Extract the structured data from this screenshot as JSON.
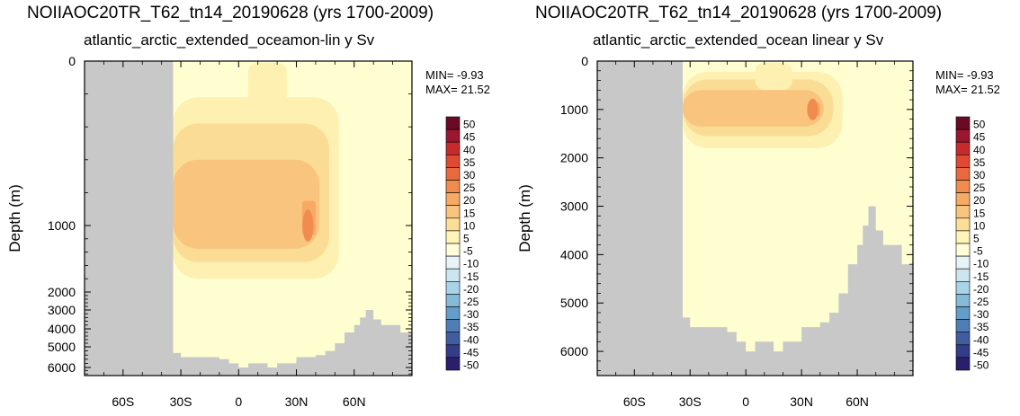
{
  "chart_data": [
    {
      "type": "heatmap",
      "title": "NOIIAOC20TR_T62_tn14_20190628 (yrs 1700-2009)",
      "subtitle": "atlantic_arctic_extended_oceamon-lin y Sv",
      "ylabel": "Depth (m)",
      "y_scale": "mixed: linear 0-1000 m, compressed below 1000 m",
      "y_tick_labels": [
        "0",
        "1000",
        "2000",
        "3000",
        "4000",
        "5000",
        "6000"
      ],
      "y_ticks": [
        0,
        1000,
        2000,
        3000,
        4000,
        5000,
        6000
      ],
      "x_tick_labels": [
        "60S",
        "30S",
        "0",
        "30N",
        "60N"
      ],
      "x_ticks": [
        -60,
        -30,
        0,
        30,
        60
      ],
      "xlim": [
        -80,
        90
      ],
      "ylim": [
        0,
        6500
      ],
      "min_label": "MIN= -9.93",
      "max_label": "MAX= 21.52",
      "min": -9.93,
      "max": 21.52,
      "land_mask": "south of 34S",
      "max_location": {
        "lat": 36,
        "depth": 1000,
        "value": 21.52
      },
      "bottom_topography": [
        [
          -34,
          5300
        ],
        [
          -30,
          5500
        ],
        [
          -20,
          5500
        ],
        [
          -10,
          5600
        ],
        [
          -5,
          5800
        ],
        [
          0,
          6000
        ],
        [
          5,
          5800
        ],
        [
          10,
          5800
        ],
        [
          15,
          6000
        ],
        [
          20,
          5800
        ],
        [
          25,
          5800
        ],
        [
          30,
          5500
        ],
        [
          40,
          5400
        ],
        [
          45,
          5200
        ],
        [
          50,
          4800
        ],
        [
          55,
          4200
        ],
        [
          60,
          3800
        ],
        [
          63,
          3400
        ],
        [
          66,
          3000
        ],
        [
          70,
          3500
        ],
        [
          74,
          3800
        ],
        [
          80,
          3800
        ],
        [
          84,
          4200
        ],
        [
          90,
          4400
        ]
      ],
      "contours": [
        {
          "level": 5,
          "lat": [
            -34,
            52
          ],
          "depth": [
            220,
            1800
          ]
        },
        {
          "level": 10,
          "lat": [
            -34,
            47
          ],
          "depth": [
            380,
            1550
          ]
        },
        {
          "level": 15,
          "lat": [
            -34,
            42
          ],
          "depth": [
            600,
            1350
          ]
        },
        {
          "level": 20,
          "lat": [
            33,
            40
          ],
          "depth": [
            850,
            1150
          ]
        }
      ]
    },
    {
      "type": "heatmap",
      "title": "NOIIAOC20TR_T62_tn14_20190628 (yrs 1700-2009)",
      "subtitle": "atlantic_arctic_extended_ocean linear y Sv",
      "ylabel": "Depth (m)",
      "y_scale": "linear",
      "y_tick_labels": [
        "0",
        "1000",
        "2000",
        "3000",
        "4000",
        "5000",
        "6000"
      ],
      "y_ticks": [
        0,
        1000,
        2000,
        3000,
        4000,
        5000,
        6000
      ],
      "x_tick_labels": [
        "60S",
        "30S",
        "0",
        "30N",
        "60N"
      ],
      "x_ticks": [
        -60,
        -30,
        0,
        30,
        60
      ],
      "xlim": [
        -80,
        90
      ],
      "ylim": [
        0,
        6500
      ],
      "min_label": "MIN= -9.93",
      "max_label": "MAX= 21.52",
      "min": -9.93,
      "max": 21.52,
      "land_mask": "south of 34S",
      "max_location": {
        "lat": 36,
        "depth": 1000,
        "value": 21.52
      },
      "bottom_topography": [
        [
          -34,
          5300
        ],
        [
          -30,
          5500
        ],
        [
          -20,
          5500
        ],
        [
          -10,
          5600
        ],
        [
          -5,
          5800
        ],
        [
          0,
          6000
        ],
        [
          5,
          5800
        ],
        [
          10,
          5800
        ],
        [
          15,
          6000
        ],
        [
          20,
          5800
        ],
        [
          25,
          5800
        ],
        [
          30,
          5500
        ],
        [
          40,
          5400
        ],
        [
          45,
          5200
        ],
        [
          50,
          4800
        ],
        [
          55,
          4200
        ],
        [
          60,
          3800
        ],
        [
          63,
          3400
        ],
        [
          66,
          3000
        ],
        [
          70,
          3500
        ],
        [
          74,
          3800
        ],
        [
          80,
          3800
        ],
        [
          84,
          4200
        ],
        [
          90,
          4400
        ]
      ],
      "contours": [
        {
          "level": 5,
          "lat": [
            -34,
            52
          ],
          "depth": [
            220,
            1800
          ]
        },
        {
          "level": 10,
          "lat": [
            -34,
            47
          ],
          "depth": [
            380,
            1550
          ]
        },
        {
          "level": 15,
          "lat": [
            -34,
            42
          ],
          "depth": [
            600,
            1350
          ]
        },
        {
          "level": 20,
          "lat": [
            33,
            40
          ],
          "depth": [
            850,
            1150
          ]
        }
      ]
    }
  ],
  "colorbar": {
    "labels": [
      "50",
      "45",
      "40",
      "35",
      "30",
      "25",
      "20",
      "15",
      "10",
      "5",
      "-5",
      "-10",
      "-15",
      "-20",
      "-25",
      "-30",
      "-35",
      "-40",
      "-45",
      "-50"
    ],
    "colors": [
      "#6b0a24",
      "#9b1630",
      "#c72a2c",
      "#e04a33",
      "#ea6a3f",
      "#f28b4f",
      "#f6aa64",
      "#f9c47d",
      "#fcdf96",
      "#fff5b8",
      "#fffed8",
      "#e8f3f6",
      "#cbe6ef",
      "#a9d3e6",
      "#83bbd8",
      "#649dc8",
      "#4f7db5",
      "#3f5d9f",
      "#333d88",
      "#2a1f6a"
    ],
    "land_color": "#c8c8c8",
    "background_color": "#fffed0"
  }
}
